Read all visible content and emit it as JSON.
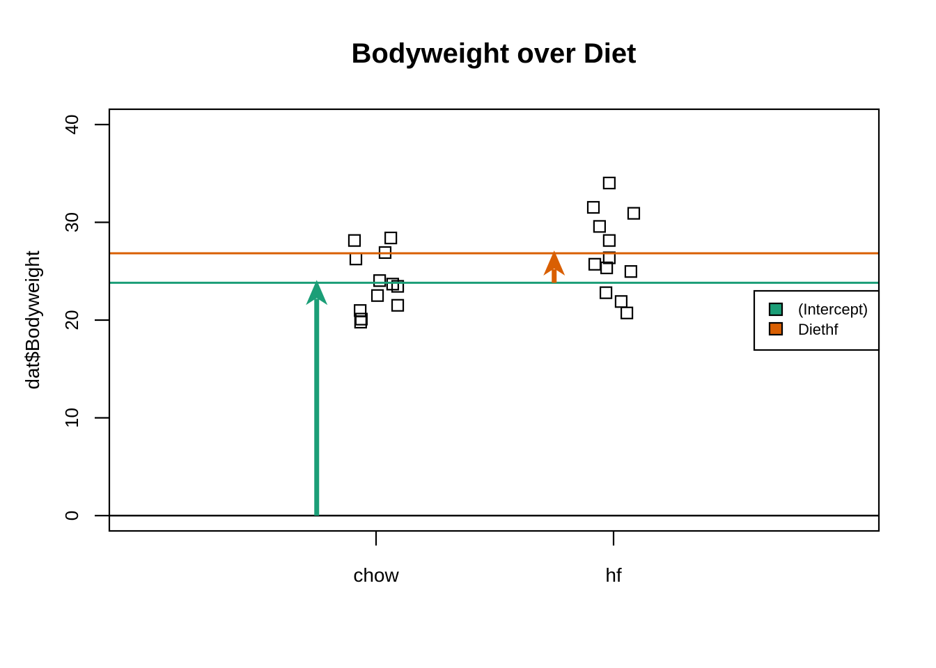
{
  "chart_data": {
    "type": "scatter",
    "title": "Bodyweight over Diet",
    "xlabel": "",
    "ylabel": "dat$Bodyweight",
    "categories": [
      "chow",
      "hf"
    ],
    "yticks": [
      0,
      10,
      20,
      30,
      40
    ],
    "ylim": [
      0,
      40
    ],
    "grid": false,
    "marker": "open-square",
    "marker_color": "#000000",
    "series": [
      {
        "name": "chow",
        "values": [
          28.14,
          28.4,
          26.91,
          26.25,
          24.04,
          23.68,
          23.45,
          22.51,
          21.51,
          20.98,
          20.1,
          19.79
        ],
        "jitter": [
          -0.091,
          0.062,
          0.038,
          -0.085,
          0.015,
          0.07,
          0.091,
          0.006,
          0.091,
          -0.067,
          -0.062,
          -0.065
        ]
      },
      {
        "name": "hf",
        "values": [
          34.02,
          31.53,
          30.92,
          29.58,
          28.14,
          26.37,
          25.71,
          25.34,
          24.97,
          22.8,
          21.9,
          20.73
        ],
        "jitter": [
          -0.018,
          -0.085,
          0.085,
          -0.059,
          -0.018,
          -0.018,
          -0.079,
          -0.029,
          0.073,
          -0.032,
          0.032,
          0.056
        ]
      }
    ],
    "hlines": [
      {
        "name": "zero-line",
        "y": 0,
        "color": "#000000",
        "width": 2.5
      },
      {
        "name": "intercept-line",
        "y": 23.813,
        "color": "#1B9E77",
        "width": 3
      },
      {
        "name": "diethf-line",
        "y": 26.834,
        "color": "#D95F02",
        "width": 3
      }
    ],
    "arrows": [
      {
        "name": "intercept-arrow",
        "x": 0.75,
        "from": 0,
        "to": 23.813,
        "color": "#1B9E77"
      },
      {
        "name": "diethf-arrow",
        "x": 1.75,
        "from": 23.813,
        "to": 26.834,
        "color": "#D95F02"
      }
    ],
    "legend": {
      "position": "right",
      "items": [
        {
          "label": "(Intercept)",
          "color": "#1B9E77"
        },
        {
          "label": "Diethf",
          "color": "#D95F02"
        }
      ]
    }
  }
}
